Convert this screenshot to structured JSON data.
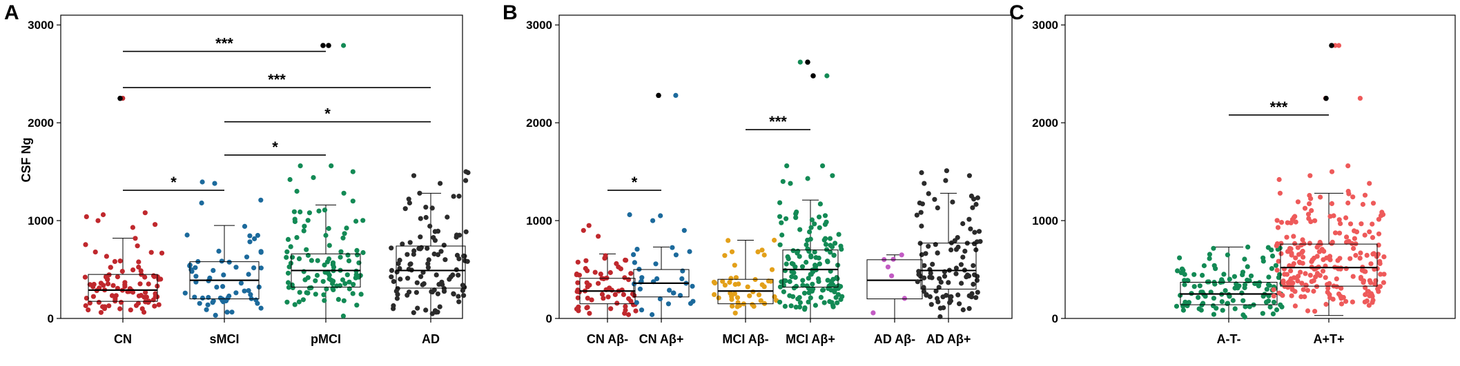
{
  "chart_data": [
    {
      "id": "A",
      "type": "box-scatter",
      "panel_label": "A",
      "ylabel": "CSF Ng",
      "ylim": [
        0,
        3100
      ],
      "yticks": [
        0,
        1000,
        2000,
        3000
      ],
      "categories": [
        "CN",
        "sMCI",
        "pMCI",
        "AD"
      ],
      "colors": [
        "#c0282d",
        "#1c6a9c",
        "#138a55",
        "#2b2b2b"
      ],
      "groups": [
        {
          "name": "CN",
          "n": 90,
          "q1": 175,
          "median": 290,
          "q3": 450,
          "wlo": 0,
          "whi": 820,
          "spread": 0.42,
          "extra": [
            930,
            960,
            1000,
            1040,
            1060,
            1080,
            2250
          ]
        },
        {
          "name": "sMCI",
          "n": 60,
          "q1": 200,
          "median": 390,
          "q3": 580,
          "wlo": 0,
          "whi": 950,
          "spread": 0.42,
          "extra": [
            1180,
            1210,
            1380,
            1395
          ]
        },
        {
          "name": "pMCI",
          "n": 100,
          "q1": 320,
          "median": 490,
          "q3": 660,
          "wlo": 0,
          "whi": 1160,
          "spread": 0.42,
          "extra": [
            1200,
            1280,
            1300,
            1420,
            1440,
            1500,
            1560,
            1560,
            2790
          ]
        },
        {
          "name": "AD",
          "n": 100,
          "q1": 310,
          "median": 490,
          "q3": 740,
          "wlo": 0,
          "whi": 1280,
          "spread": 0.42,
          "extra": [
            1180,
            1220,
            1280,
            1380,
            1410,
            1460,
            1490,
            1500
          ]
        }
      ],
      "outliers": [
        {
          "group": 0,
          "value": 2250
        },
        {
          "group": 2,
          "value": 2790
        },
        {
          "group": 2,
          "value": 2790
        }
      ],
      "significance": [
        {
          "from": 0,
          "to": 2,
          "y": 2730,
          "label": "***"
        },
        {
          "from": 0,
          "to": 3,
          "y": 2360,
          "label": "***"
        },
        {
          "from": 1,
          "to": 3,
          "y": 2010,
          "label": "*"
        },
        {
          "from": 1,
          "to": 2,
          "y": 1670,
          "label": "*"
        },
        {
          "from": 0,
          "to": 1,
          "y": 1310,
          "label": "*"
        }
      ]
    },
    {
      "id": "B",
      "type": "box-scatter",
      "panel_label": "B",
      "ylabel": "",
      "ylim": [
        0,
        3100
      ],
      "yticks": [
        0,
        1000,
        2000,
        3000
      ],
      "categories": [
        "CN Aβ-",
        "CN Aβ+",
        "MCI Aβ-",
        "MCI Aβ+",
        "AD Aβ-",
        "AD Aβ+"
      ],
      "colors": [
        "#c0282d",
        "#1c6a9c",
        "#e3a019",
        "#138a55",
        "#c25bc3",
        "#2b2b2b"
      ],
      "groups": [
        {
          "name": "CN Aβ-",
          "n": 65,
          "q1": 150,
          "median": 280,
          "q3": 410,
          "wlo": 0,
          "whi": 660,
          "spread": 0.4,
          "extra": [
            840,
            900,
            950
          ]
        },
        {
          "name": "CN Aβ+",
          "n": 30,
          "q1": 220,
          "median": 360,
          "q3": 500,
          "wlo": 0,
          "whi": 730,
          "spread": 0.4,
          "extra": [
            900,
            1000,
            1050,
            1060,
            2280
          ]
        },
        {
          "name": "MCI Aβ-",
          "n": 45,
          "q1": 150,
          "median": 280,
          "q3": 400,
          "wlo": 0,
          "whi": 800,
          "spread": 0.4,
          "extra": [
            800
          ]
        },
        {
          "name": "MCI Aβ+",
          "n": 140,
          "q1": 320,
          "median": 500,
          "q3": 700,
          "wlo": 0,
          "whi": 1210,
          "spread": 0.4,
          "extra": [
            1380,
            1400,
            1430,
            1460,
            1560,
            1560,
            2480,
            2620
          ]
        },
        {
          "name": "AD Aβ-",
          "n": 7,
          "q1": 200,
          "median": 390,
          "q3": 600,
          "wlo": 0,
          "whi": 650,
          "spread": 0.32,
          "extra": []
        },
        {
          "name": "AD Aβ+",
          "n": 95,
          "q1": 300,
          "median": 490,
          "q3": 770,
          "wlo": 0,
          "whi": 1280,
          "spread": 0.4,
          "extra": [
            1180,
            1220,
            1380,
            1410,
            1460,
            1490,
            1510
          ]
        }
      ],
      "outliers": [
        {
          "group": 1,
          "value": 2280
        },
        {
          "group": 3,
          "value": 2480
        },
        {
          "group": 3,
          "value": 2620
        }
      ],
      "significance": [
        {
          "from": 0,
          "to": 1,
          "y": 1310,
          "label": "*"
        },
        {
          "from": 2,
          "to": 3,
          "y": 1930,
          "label": "***"
        }
      ]
    },
    {
      "id": "C",
      "type": "box-scatter",
      "panel_label": "C",
      "ylabel": "",
      "ylim": [
        0,
        3100
      ],
      "yticks": [
        0,
        1000,
        2000,
        3000
      ],
      "categories": [
        "A-T-",
        "A+T+"
      ],
      "colors": [
        "#138a55",
        "#ee5a5a"
      ],
      "groups": [
        {
          "name": "A-T-",
          "n": 120,
          "q1": 140,
          "median": 250,
          "q3": 370,
          "wlo": 0,
          "whi": 730,
          "spread": 0.4,
          "extra": [
            700,
            720,
            730
          ]
        },
        {
          "name": "A+T+",
          "n": 230,
          "q1": 330,
          "median": 520,
          "q3": 760,
          "wlo": 30,
          "whi": 1280,
          "spread": 0.4,
          "extra": [
            1180,
            1300,
            1380,
            1420,
            1460,
            1500,
            1560,
            2250,
            2250,
            2790,
            2790
          ]
        }
      ],
      "outliers": [
        {
          "group": 1,
          "value": 2250
        },
        {
          "group": 1,
          "value": 2790
        }
      ],
      "significance": [
        {
          "from": 0,
          "to": 1,
          "y": 2080,
          "label": "***"
        }
      ]
    }
  ]
}
